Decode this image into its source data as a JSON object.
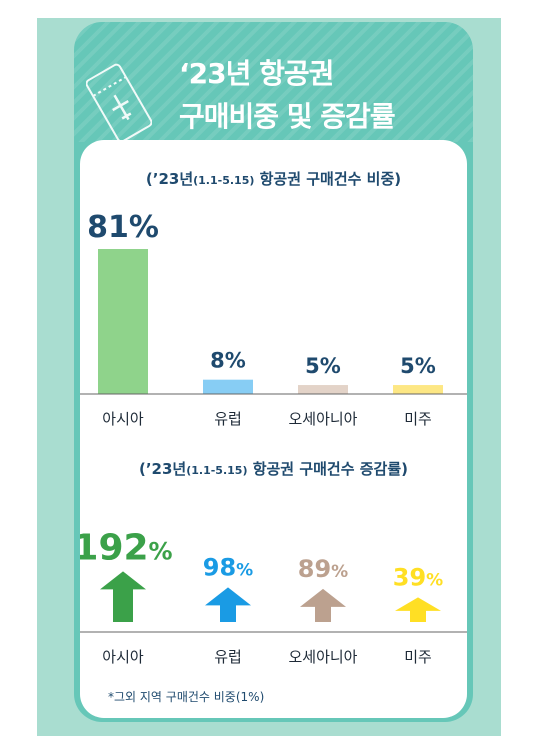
{
  "header": {
    "title_line1": "‘23년 항공권",
    "title_line2": "구매비중 및 증감률"
  },
  "share_chart": {
    "subtitle_main": "(’23년",
    "subtitle_period": "(1.1-5.15)",
    "subtitle_rest": " 항공권 구매건수 비중)"
  },
  "growth_chart": {
    "subtitle_main": "(’23년",
    "subtitle_period": "(1.1-5.15)",
    "subtitle_rest": " 항공권 구매건수 증감률)"
  },
  "footnote": "*그외 지역 구매건수 비중(1%)",
  "chart_data": [
    {
      "type": "bar",
      "title": "(’23년(1.1-5.15) 항공권 구매건수 비중)",
      "categories": [
        "아시아",
        "유럽",
        "오세아니아",
        "미주"
      ],
      "values": [
        81,
        8,
        5,
        5
      ],
      "value_labels": [
        "81%",
        "8%",
        "5%",
        "5%"
      ],
      "colors": [
        "#8fd38b",
        "#87cdf4",
        "#e3d3c8",
        "#fde784"
      ],
      "label_color": "#1f4a6e",
      "unit": "%"
    },
    {
      "type": "bar",
      "title": "(’23년(1.1-5.15) 항공권 구매건수 증감률)",
      "categories": [
        "아시아",
        "유럽",
        "오세아니아",
        "미주"
      ],
      "values": [
        192,
        98,
        89,
        39
      ],
      "value_labels": [
        "192",
        "98",
        "89",
        "39"
      ],
      "unit": "%",
      "colors": [
        "#3ba149",
        "#1a9be4",
        "#bca18f",
        "#ffdf24"
      ],
      "marker": "up-arrow"
    }
  ]
}
